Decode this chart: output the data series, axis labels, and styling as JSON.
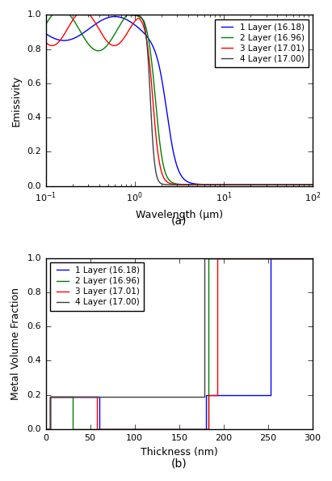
{
  "colors": {
    "layer1": "#0000ff",
    "layer2": "#008000",
    "layer3": "#ff0000",
    "layer4": "#404040"
  },
  "legend_labels": {
    "layer1": "1 Layer (16.18)",
    "layer2": "2 Layer (16.96)",
    "layer3": "3 Layer (17.01)",
    "layer4": "4 Layer (17.00)"
  },
  "plot_a": {
    "xlabel": "Wavelength (μm)",
    "ylabel": "Emissivity",
    "xmin": 0.1,
    "xmax": 100,
    "ymin": 0,
    "ymax": 1,
    "label": "(a)",
    "yticks": [
      0,
      0.2,
      0.4,
      0.6,
      0.8,
      1.0
    ]
  },
  "plot_b": {
    "xlabel": "Thickness (nm)",
    "ylabel": "Metal Volume Fraction",
    "xmin": 0,
    "xmax": 300,
    "ymin": 0,
    "ymax": 1,
    "label": "(b)",
    "xticks": [
      0,
      50,
      100,
      150,
      200,
      250,
      300
    ],
    "yticks": [
      0,
      0.2,
      0.4,
      0.6,
      0.8,
      1.0
    ]
  },
  "layer1_step_x": [
    0,
    5,
    5,
    60,
    60,
    180,
    180,
    253,
    253,
    300
  ],
  "layer1_step_y": [
    0,
    0,
    0.19,
    0.19,
    0.0,
    0.0,
    0.2,
    0.2,
    1.0,
    1.0
  ],
  "layer2_step_x": [
    0,
    5,
    5,
    30,
    30,
    183,
    183,
    300
  ],
  "layer2_step_y": [
    0,
    0,
    0.19,
    0.19,
    0.0,
    0.0,
    1.0,
    1.0
  ],
  "layer3_step_x": [
    0,
    5,
    5,
    58,
    58,
    183,
    183,
    193,
    193,
    300
  ],
  "layer3_step_y": [
    0,
    0,
    0.19,
    0.19,
    0.0,
    0.0,
    0.2,
    0.2,
    1.0,
    1.0
  ],
  "layer4_step_x": [
    0,
    5,
    5,
    178,
    178,
    300
  ],
  "layer4_step_y": [
    0,
    0,
    0.19,
    0.19,
    1.0,
    1.0
  ]
}
